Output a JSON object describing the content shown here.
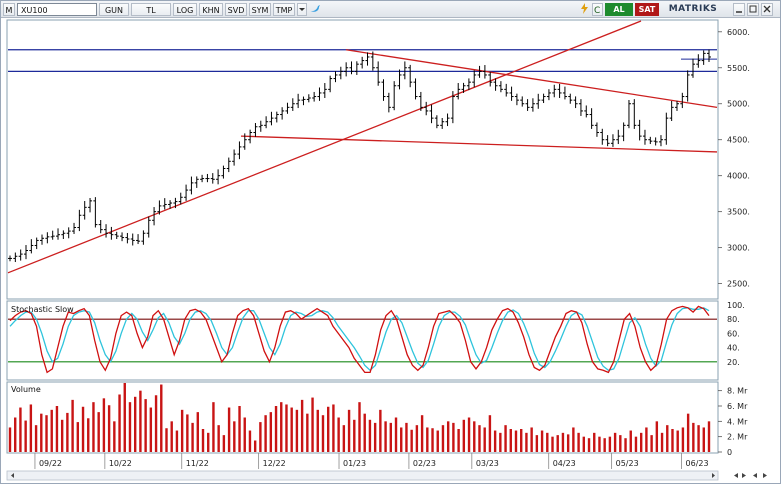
{
  "toolbar": {
    "menu_label": "M",
    "symbol": "XU100",
    "period": "GUN",
    "currency": "TL",
    "buttons": [
      "LOG",
      "KHN",
      "SVD",
      "SYM",
      "TMP"
    ],
    "buy_label": "AL",
    "sell_label": "SAT",
    "brand": "MATRIKS",
    "colors": {
      "buy": "#1e8b2e",
      "sell": "#b01818",
      "twitter": "#3aa0e0"
    }
  },
  "chart_data": [
    {
      "panel": "price",
      "type": "line",
      "style": "ohlc-bars",
      "x_labels": [
        "09/22",
        "10/22",
        "11/22",
        "12/22",
        "01/23",
        "02/23",
        "03/23",
        "04/23",
        "05/23",
        "06/23"
      ],
      "y_ticks": [
        "6000.",
        "5500.",
        "5000.",
        "4500.",
        "4000.",
        "3500.",
        "3000.",
        "2500."
      ],
      "ylim": [
        2300,
        6150
      ],
      "series": [
        {
          "values": [
            2850,
            2880,
            2910,
            2960,
            3030,
            3100,
            3130,
            3150,
            3160,
            3180,
            3200,
            3230,
            3280,
            3450,
            3560,
            3650,
            3320,
            3250,
            3200,
            3180,
            3160,
            3140,
            3120,
            3100,
            3090,
            3200,
            3380,
            3500,
            3580,
            3600,
            3620,
            3640,
            3700,
            3800,
            3900,
            3950,
            3960,
            3960,
            3950,
            4000,
            4100,
            4200,
            4300,
            4400,
            4500,
            4600,
            4680,
            4700,
            4750,
            4800,
            4850,
            4900,
            4950,
            5000,
            5050,
            5060,
            5080,
            5100,
            5150,
            5200,
            5350,
            5400,
            5450,
            5500,
            5450,
            5550,
            5600,
            5650,
            5500,
            5300,
            5100,
            4950,
            5250,
            5400,
            5500,
            5300,
            5100,
            4950,
            4900,
            4800,
            4700,
            4750,
            4800,
            5100,
            5200,
            5250,
            5300,
            5400,
            5450,
            5400,
            5300,
            5250,
            5200,
            5150,
            5100,
            5050,
            5000,
            4950,
            5000,
            5050,
            5100,
            5150,
            5200,
            5150,
            5100,
            5050,
            5000,
            4900,
            4850,
            4700,
            4600,
            4500,
            4450,
            4500,
            4550,
            4700,
            5000,
            4700,
            4550,
            4500,
            4480,
            4470,
            4500,
            4800,
            4950,
            5000,
            5100,
            5400,
            5550,
            5600,
            5700,
            5650
          ]
        }
      ],
      "trendlines_color": "#cc1f1f",
      "levels_color": "#1d2a9a"
    },
    {
      "panel": "oscillator",
      "type": "line",
      "title": "Stochastic Slow",
      "y_ticks": [
        "100.",
        "80.",
        "60.",
        "40.",
        "20."
      ],
      "ylim": [
        0,
        100
      ],
      "levels": [
        80,
        20
      ],
      "series": [
        {
          "color": "#d01010",
          "values": [
            78,
            85,
            90,
            92,
            88,
            70,
            30,
            5,
            10,
            40,
            70,
            90,
            88,
            92,
            95,
            85,
            50,
            20,
            8,
            25,
            60,
            85,
            90,
            85,
            60,
            40,
            55,
            85,
            92,
            80,
            55,
            30,
            50,
            80,
            92,
            94,
            90,
            80,
            60,
            40,
            20,
            30,
            60,
            85,
            92,
            95,
            85,
            60,
            35,
            20,
            40,
            70,
            90,
            92,
            88,
            80,
            85,
            90,
            95,
            90,
            85,
            70,
            60,
            50,
            40,
            25,
            15,
            5,
            5,
            30,
            65,
            85,
            92,
            80,
            55,
            30,
            15,
            8,
            15,
            40,
            70,
            88,
            90,
            92,
            85,
            75,
            50,
            20,
            10,
            20,
            40,
            65,
            80,
            92,
            95,
            90,
            75,
            55,
            30,
            12,
            8,
            15,
            35,
            55,
            70,
            88,
            92,
            90,
            75,
            45,
            20,
            10,
            8,
            5,
            20,
            50,
            80,
            88,
            70,
            40,
            20,
            8,
            15,
            45,
            80,
            92,
            96,
            98,
            96,
            90,
            98,
            95,
            85
          ]
        },
        {
          "color": "#2ec4dc",
          "values": [
            70,
            78,
            85,
            90,
            90,
            80,
            60,
            35,
            20,
            25,
            45,
            70,
            85,
            90,
            92,
            90,
            75,
            50,
            30,
            20,
            35,
            60,
            80,
            88,
            80,
            62,
            50,
            65,
            82,
            88,
            75,
            55,
            45,
            60,
            80,
            90,
            92,
            88,
            78,
            60,
            40,
            30,
            40,
            62,
            82,
            92,
            92,
            80,
            60,
            40,
            30,
            45,
            68,
            85,
            90,
            88,
            84,
            85,
            90,
            92,
            90,
            82,
            70,
            60,
            50,
            40,
            28,
            15,
            8,
            15,
            38,
            62,
            80,
            85,
            75,
            55,
            35,
            18,
            12,
            22,
            45,
            70,
            85,
            90,
            90,
            84,
            72,
            50,
            30,
            18,
            22,
            40,
            60,
            78,
            90,
            93,
            88,
            74,
            55,
            32,
            16,
            12,
            20,
            35,
            52,
            70,
            85,
            90,
            86,
            70,
            48,
            26,
            14,
            8,
            10,
            25,
            50,
            75,
            82,
            70,
            45,
            25,
            14,
            22,
            48,
            72,
            88,
            95,
            96,
            94,
            94,
            96,
            92
          ]
        }
      ]
    },
    {
      "panel": "volume",
      "type": "bar",
      "title": "Volume",
      "y_ticks": [
        "8. Mr",
        "6. Mr",
        "4. Mr",
        "2. Mr",
        "0"
      ],
      "ylim": [
        0,
        9
      ],
      "color": "#c81414",
      "values": [
        3.2,
        4.5,
        5.8,
        4.1,
        6.2,
        3.5,
        5.0,
        4.8,
        5.5,
        6.0,
        4.2,
        5.1,
        6.8,
        3.9,
        5.9,
        4.4,
        6.5,
        5.2,
        7.0,
        6.1,
        4.0,
        7.5,
        9.0,
        6.5,
        7.2,
        8.0,
        6.9,
        5.8,
        7.4,
        8.8,
        3.1,
        4.0,
        2.8,
        5.5,
        4.9,
        3.8,
        5.2,
        3.0,
        2.5,
        6.5,
        3.5,
        2.2,
        5.8,
        4.0,
        6.0,
        4.5,
        2.8,
        1.5,
        3.9,
        4.8,
        5.2,
        6.0,
        6.5,
        6.2,
        5.8,
        5.5,
        6.8,
        5.0,
        7.1,
        5.5,
        4.8,
        5.9,
        6.2,
        4.5,
        3.5,
        5.5,
        4.2,
        6.5,
        5.0,
        4.2,
        3.8,
        5.5,
        4.0,
        3.8,
        4.5,
        3.2,
        3.8,
        2.9,
        3.5,
        4.8,
        3.2,
        3.1,
        2.8,
        3.5,
        4.0,
        3.8,
        3.0,
        4.2,
        4.5,
        4.0,
        3.5,
        3.2,
        4.8,
        2.8,
        2.5,
        3.5,
        3.0,
        2.8,
        3.0,
        2.5,
        3.2,
        2.2,
        2.8,
        2.5,
        2.0,
        2.2,
        2.5,
        2.3,
        3.2,
        2.5,
        2.0,
        1.8,
        2.5,
        2.0,
        1.8,
        2.0,
        2.5,
        2.2,
        1.8,
        2.8,
        2.0,
        2.5,
        3.2,
        2.2,
        4.0,
        2.5,
        3.5,
        3.0,
        2.8,
        3.2,
        5.0,
        3.8,
        3.5,
        3.2,
        4.0
      ]
    }
  ]
}
